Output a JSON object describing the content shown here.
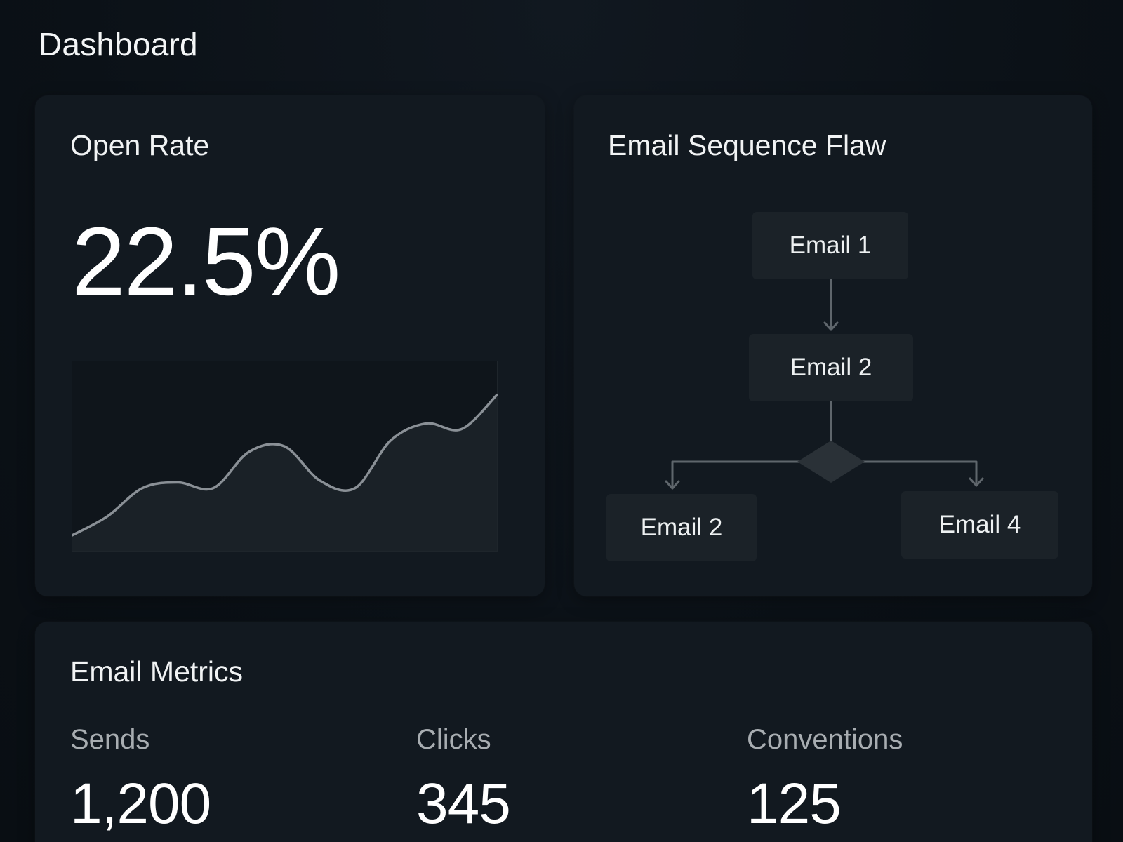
{
  "page": {
    "title": "Dashboard",
    "background": "#0b1117",
    "card_background": "#121920"
  },
  "open_rate": {
    "title": "Open Rate",
    "value": "22.5%",
    "trend": {
      "line_color": "#8a9096",
      "fill_color": "#1a2127",
      "points": [
        0.08,
        0.18,
        0.33,
        0.36,
        0.33,
        0.52,
        0.55,
        0.37,
        0.33,
        0.58,
        0.67,
        0.64,
        0.82
      ]
    }
  },
  "sequence_flow": {
    "title": "Email Sequence Flaw",
    "nodes": [
      {
        "label": "Email 1"
      },
      {
        "label": "Email 2"
      },
      {
        "label": "Email 2"
      },
      {
        "label": "Email 4"
      }
    ],
    "connector_color": "#5f666c",
    "decision_color": "#2a3137"
  },
  "metrics": {
    "title": "Email Metrics",
    "items": [
      {
        "label": "Sends",
        "value": "1,200"
      },
      {
        "label": "Clicks",
        "value": "345"
      },
      {
        "label": "Conventions",
        "value": "125"
      }
    ]
  }
}
